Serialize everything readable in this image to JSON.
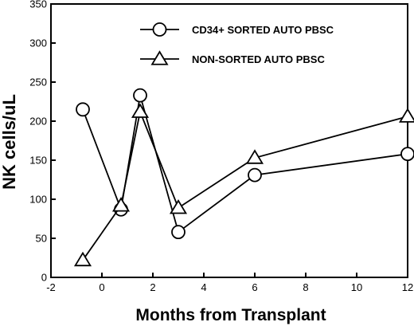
{
  "chart_data": {
    "type": "line",
    "title": "",
    "xlabel": "Months from Transplant",
    "ylabel": "NK cells/uL",
    "xlim": [
      -2,
      12
    ],
    "ylim": [
      0,
      350
    ],
    "xticks": [
      -2,
      0,
      2,
      4,
      6,
      8,
      10,
      12
    ],
    "yticks": [
      0,
      50,
      100,
      150,
      200,
      250,
      300,
      350
    ],
    "grid": false,
    "legend_position": "top-right",
    "series": [
      {
        "name": "CD34+ SORTED AUTO PBSC",
        "marker": "circle",
        "x": [
          -0.75,
          0.75,
          1.5,
          3,
          6,
          12
        ],
        "y": [
          215,
          87,
          233,
          58,
          131,
          158
        ]
      },
      {
        "name": "NON-SORTED AUTO PBSC",
        "marker": "triangle",
        "x": [
          -0.75,
          0.75,
          1.5,
          3,
          6,
          12
        ],
        "y": [
          22,
          92,
          212,
          89,
          153,
          206
        ]
      }
    ]
  }
}
